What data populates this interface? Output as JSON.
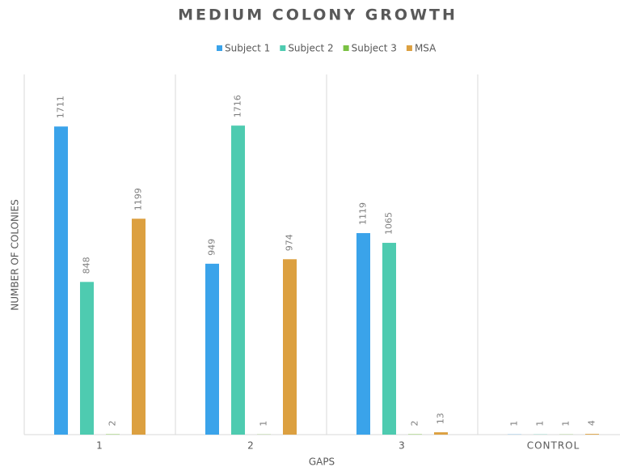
{
  "chart_data": {
    "type": "bar",
    "title": "MEDIUM COLONY GROWTH",
    "x_label": "GAPS",
    "y_label": "NUMBER OF COLONIES",
    "categories": [
      "1",
      "2",
      "3",
      "CONTROL"
    ],
    "series": [
      {
        "name": "Subject 1",
        "color": "#3aa3ea",
        "values": [
          1711,
          949,
          1119,
          1
        ]
      },
      {
        "name": "Subject 2",
        "color": "#4ecbb0",
        "values": [
          848,
          1716,
          1065,
          1
        ]
      },
      {
        "name": "Subject 3",
        "color": "#7ac143",
        "values": [
          2,
          1,
          2,
          1
        ]
      },
      {
        "name": "MSA",
        "color": "#dca040",
        "values": [
          1199,
          974,
          13,
          4
        ]
      }
    ],
    "ylim": [
      0,
      2000
    ],
    "legend": "top"
  }
}
